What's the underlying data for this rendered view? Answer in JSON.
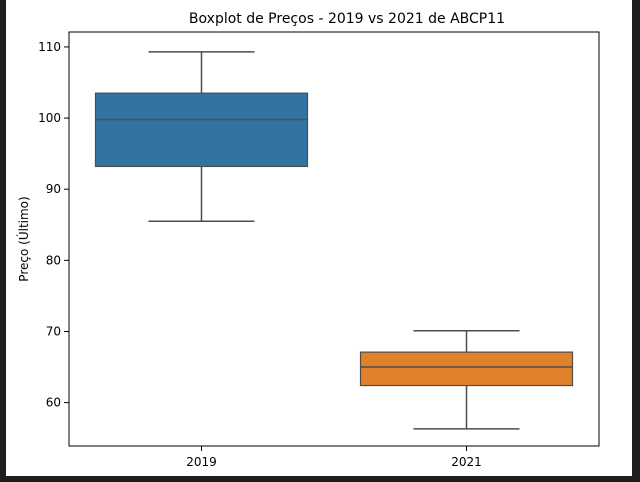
{
  "chart_data": {
    "type": "boxplot",
    "title": "Boxplot de Preços - 2019 vs 2021 de ABCP11",
    "xlabel": "",
    "ylabel": "Preço (Último)",
    "categories": [
      "2019",
      "2021"
    ],
    "boxes": [
      {
        "category": "2019",
        "whisker_low": 85.5,
        "q1": 93.2,
        "median": 99.8,
        "q3": 103.5,
        "whisker_high": 109.3,
        "color": "#3274a1"
      },
      {
        "category": "2021",
        "whisker_low": 56.3,
        "q1": 62.4,
        "median": 65.0,
        "q3": 67.1,
        "whisker_high": 70.1,
        "color": "#e1812c"
      }
    ],
    "ylim": [
      53.9,
      112.1
    ],
    "yticks": [
      60,
      70,
      80,
      90,
      100,
      110
    ],
    "grid": false,
    "legend": "none"
  },
  "colors": {
    "box_edge": "#4d4d4d",
    "axes": "#000000"
  }
}
